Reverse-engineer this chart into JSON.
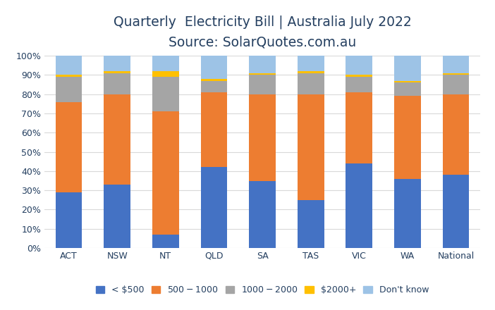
{
  "categories": [
    "ACT",
    "NSW",
    "NT",
    "QLD",
    "SA",
    "TAS",
    "VIC",
    "WA",
    "National"
  ],
  "series": {
    "< $500": [
      29,
      33,
      7,
      42,
      35,
      25,
      44,
      36,
      38
    ],
    "$500 - $1000": [
      47,
      47,
      64,
      39,
      45,
      55,
      37,
      43,
      42
    ],
    "$1000- $2000": [
      13,
      11,
      18,
      6,
      10,
      11,
      8,
      7,
      10
    ],
    "$2000+": [
      1,
      1,
      3,
      1,
      1,
      1,
      1,
      1,
      1
    ],
    "Don't know": [
      10,
      8,
      8,
      12,
      9,
      8,
      10,
      13,
      9
    ]
  },
  "colors": {
    "< $500": "#4472C4",
    "$500 - $1000": "#ED7D31",
    "$1000- $2000": "#A5A5A5",
    "$2000+": "#FFC000",
    "Don't know": "#9DC3E6"
  },
  "title_line1": "Quarterly  Electricity Bill | Australia July 2022",
  "title_line2": "Source: SolarQuotes.com.au",
  "ylim": [
    0,
    100
  ],
  "ytick_labels": [
    "0%",
    "10%",
    "20%",
    "30%",
    "40%",
    "50%",
    "60%",
    "70%",
    "80%",
    "90%",
    "100%"
  ],
  "background_color": "#FFFFFF",
  "grid_color": "#D9D9D9",
  "title_color": "#243F60",
  "title_fontsize": 13.5,
  "subtitle_fontsize": 12,
  "legend_fontsize": 9,
  "tick_fontsize": 9,
  "bar_width": 0.55
}
